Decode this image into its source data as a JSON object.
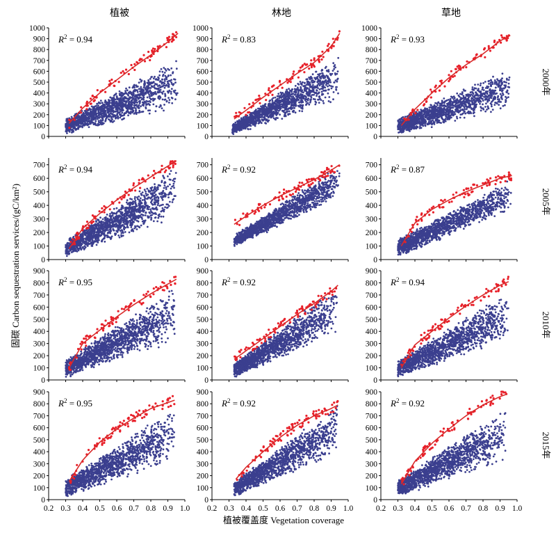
{
  "figure": {
    "column_titles": [
      "植被",
      "林地",
      "草地"
    ],
    "row_labels": [
      "2000年",
      "2005年",
      "2010年",
      "2015年"
    ],
    "xlabel": "植被覆盖度 Vegetation coverage",
    "ylabel": "固碳 Carbon sequestration services/(gC/km²)",
    "colors": {
      "points": "#3b3f8f",
      "boundary_points": "#e8202a",
      "fit_line": "#d92a2a"
    }
  },
  "chart_data": [
    {
      "type": "scatter",
      "row": "2000年",
      "column": "植被",
      "r2_label": "R",
      "r2_value": "= 0.94",
      "xlim": [
        0.2,
        1.0
      ],
      "ylim": [
        0,
        1000
      ],
      "x_ticks": [
        "0.2",
        "0.3",
        "0.4",
        "0.5",
        "0.6",
        "0.7",
        "0.8",
        "0.9",
        "1.0"
      ],
      "y_ticks": [
        "0",
        "100",
        "200",
        "300",
        "400",
        "500",
        "600",
        "700",
        "800",
        "900",
        "1000"
      ],
      "fit_curve": {
        "x": [
          0.32,
          0.4,
          0.5,
          0.6,
          0.7,
          0.8,
          0.9,
          0.96
        ],
        "y": [
          120,
          260,
          400,
          520,
          640,
          750,
          870,
          950
        ]
      },
      "cloud": {
        "x_min": 0.3,
        "x_max": 0.96,
        "low_start": 0,
        "low_end": 200,
        "high_start": 160,
        "high_end": 720
      }
    },
    {
      "type": "scatter",
      "row": "2000年",
      "column": "林地",
      "r2_label": "R",
      "r2_value": "= 0.83",
      "xlim": [
        0.2,
        1.0
      ],
      "ylim": [
        0,
        1000
      ],
      "x_ticks": [
        "0.2",
        "0.3",
        "0.4",
        "0.5",
        "0.6",
        "0.7",
        "0.8",
        "0.9",
        "1.0"
      ],
      "y_ticks": [
        "0",
        "100",
        "200",
        "300",
        "400",
        "500",
        "600",
        "700",
        "800",
        "900",
        "1000"
      ],
      "fit_curve": {
        "x": [
          0.33,
          0.4,
          0.5,
          0.6,
          0.7,
          0.8,
          0.9,
          0.95
        ],
        "y": [
          160,
          240,
          360,
          470,
          580,
          680,
          830,
          950
        ]
      },
      "cloud": {
        "x_min": 0.32,
        "x_max": 0.95,
        "low_start": 0,
        "low_end": 280,
        "high_start": 120,
        "high_end": 760
      }
    },
    {
      "type": "scatter",
      "row": "2000年",
      "column": "草地",
      "r2_label": "R",
      "r2_value": "= 0.93",
      "xlim": [
        0.2,
        1.0
      ],
      "ylim": [
        0,
        1000
      ],
      "x_ticks": [
        "0.2",
        "0.3",
        "0.4",
        "0.5",
        "0.6",
        "0.7",
        "0.8",
        "0.9",
        "1.0"
      ],
      "y_ticks": [
        "0",
        "100",
        "200",
        "300",
        "400",
        "500",
        "600",
        "700",
        "800",
        "900",
        "1000"
      ],
      "fit_curve": {
        "x": [
          0.32,
          0.4,
          0.5,
          0.6,
          0.7,
          0.8,
          0.9,
          0.96
        ],
        "y": [
          100,
          250,
          400,
          540,
          660,
          760,
          880,
          930
        ]
      },
      "cloud": {
        "x_min": 0.3,
        "x_max": 0.96,
        "low_start": 0,
        "low_end": 200,
        "high_start": 160,
        "high_end": 640
      }
    },
    {
      "type": "scatter",
      "row": "2005年",
      "column": "植被",
      "r2_label": "R",
      "r2_value": "= 0.94",
      "xlim": [
        0.2,
        1.0
      ],
      "ylim": [
        0,
        750
      ],
      "x_ticks": [
        "0.2",
        "0.3",
        "0.4",
        "0.5",
        "0.6",
        "0.7",
        "0.8",
        "0.9",
        "1.0"
      ],
      "y_ticks": [
        "0",
        "100",
        "200",
        "300",
        "400",
        "500",
        "600",
        "700"
      ],
      "fit_curve": {
        "x": [
          0.32,
          0.4,
          0.5,
          0.6,
          0.7,
          0.8,
          0.9,
          0.95
        ],
        "y": [
          80,
          230,
          340,
          440,
          530,
          610,
          690,
          730
        ]
      },
      "cloud": {
        "x_min": 0.3,
        "x_max": 0.95,
        "low_start": 0,
        "low_end": 260,
        "high_start": 140,
        "high_end": 700
      }
    },
    {
      "type": "scatter",
      "row": "2005年",
      "column": "林地",
      "r2_label": "R",
      "r2_value": "= 0.92",
      "xlim": [
        0.2,
        1.0
      ],
      "ylim": [
        0,
        750
      ],
      "x_ticks": [
        "0.2",
        "0.3",
        "0.4",
        "0.5",
        "0.6",
        "0.7",
        "0.8",
        "0.9",
        "1.0"
      ],
      "y_ticks": [
        "0",
        "100",
        "200",
        "300",
        "400",
        "500",
        "600",
        "700"
      ],
      "fit_curve": {
        "x": [
          0.33,
          0.4,
          0.5,
          0.6,
          0.7,
          0.8,
          0.9,
          0.95
        ],
        "y": [
          260,
          320,
          400,
          470,
          530,
          590,
          660,
          700
        ]
      },
      "cloud": {
        "x_min": 0.33,
        "x_max": 0.95,
        "low_start": 80,
        "low_end": 420,
        "high_start": 180,
        "high_end": 700
      }
    },
    {
      "type": "scatter",
      "row": "2005年",
      "column": "草地",
      "r2_label": "R",
      "r2_value": "= 0.87",
      "xlim": [
        0.2,
        1.0
      ],
      "ylim": [
        0,
        750
      ],
      "x_ticks": [
        "0.2",
        "0.3",
        "0.4",
        "0.5",
        "0.6",
        "0.7",
        "0.8",
        "0.9",
        "1.0"
      ],
      "y_ticks": [
        "0",
        "100",
        "200",
        "300",
        "400",
        "500",
        "600",
        "700"
      ],
      "fit_curve": {
        "x": [
          0.32,
          0.4,
          0.5,
          0.6,
          0.7,
          0.8,
          0.9,
          0.97
        ],
        "y": [
          100,
          270,
          370,
          440,
          500,
          550,
          600,
          620
        ]
      },
      "cloud": {
        "x_min": 0.3,
        "x_max": 0.97,
        "low_start": 0,
        "low_end": 330,
        "high_start": 150,
        "high_end": 600
      }
    },
    {
      "type": "scatter",
      "row": "2010年",
      "column": "植被",
      "r2_label": "R",
      "r2_value": "= 0.95",
      "xlim": [
        0.2,
        1.0
      ],
      "ylim": [
        0,
        900
      ],
      "x_ticks": [
        "0.2",
        "0.3",
        "0.4",
        "0.5",
        "0.6",
        "0.7",
        "0.8",
        "0.9",
        "1.0"
      ],
      "y_ticks": [
        "0",
        "100",
        "200",
        "300",
        "400",
        "500",
        "600",
        "700",
        "800",
        "900"
      ],
      "fit_curve": {
        "x": [
          0.32,
          0.4,
          0.5,
          0.6,
          0.7,
          0.8,
          0.9,
          0.95
        ],
        "y": [
          100,
          300,
          410,
          520,
          620,
          710,
          790,
          830
        ]
      },
      "cloud": {
        "x_min": 0.3,
        "x_max": 0.95,
        "low_start": 0,
        "low_end": 260,
        "high_start": 160,
        "high_end": 780
      }
    },
    {
      "type": "scatter",
      "row": "2010年",
      "column": "林地",
      "r2_label": "R",
      "r2_value": "= 0.92",
      "xlim": [
        0.2,
        1.0
      ],
      "ylim": [
        0,
        900
      ],
      "x_ticks": [
        "0.2",
        "0.3",
        "0.4",
        "0.5",
        "0.6",
        "0.7",
        "0.8",
        "0.9",
        "1.0"
      ],
      "y_ticks": [
        "0",
        "100",
        "200",
        "300",
        "400",
        "500",
        "600",
        "700",
        "800",
        "900"
      ],
      "fit_curve": {
        "x": [
          0.33,
          0.4,
          0.5,
          0.6,
          0.7,
          0.8,
          0.9,
          0.94
        ],
        "y": [
          170,
          240,
          340,
          440,
          540,
          630,
          730,
          780
        ]
      },
      "cloud": {
        "x_min": 0.33,
        "x_max": 0.94,
        "low_start": 0,
        "low_end": 320,
        "high_start": 140,
        "high_end": 780
      }
    },
    {
      "type": "scatter",
      "row": "2010年",
      "column": "草地",
      "r2_label": "R",
      "r2_value": "= 0.94",
      "xlim": [
        0.2,
        1.0
      ],
      "ylim": [
        0,
        900
      ],
      "x_ticks": [
        "0.2",
        "0.3",
        "0.4",
        "0.5",
        "0.6",
        "0.7",
        "0.8",
        "0.9",
        "1.0"
      ],
      "y_ticks": [
        "0",
        "100",
        "200",
        "300",
        "400",
        "500",
        "600",
        "700",
        "800",
        "900"
      ],
      "fit_curve": {
        "x": [
          0.32,
          0.4,
          0.5,
          0.6,
          0.7,
          0.8,
          0.9,
          0.95
        ],
        "y": [
          100,
          290,
          400,
          510,
          610,
          700,
          780,
          810
        ]
      },
      "cloud": {
        "x_min": 0.3,
        "x_max": 0.95,
        "low_start": 0,
        "low_end": 260,
        "high_start": 160,
        "high_end": 740
      }
    },
    {
      "type": "scatter",
      "row": "2015年",
      "column": "植被",
      "r2_label": "R",
      "r2_value": "= 0.95",
      "xlim": [
        0.2,
        1.0
      ],
      "ylim": [
        0,
        900
      ],
      "x_ticks": [
        "0.2",
        "0.3",
        "0.4",
        "0.5",
        "0.6",
        "0.7",
        "0.8",
        "0.9",
        "1.0"
      ],
      "y_ticks": [
        "0",
        "100",
        "200",
        "300",
        "400",
        "500",
        "600",
        "700",
        "800",
        "900"
      ],
      "fit_curve": {
        "x": [
          0.32,
          0.4,
          0.5,
          0.6,
          0.7,
          0.8,
          0.9,
          0.94
        ],
        "y": [
          150,
          330,
          480,
          590,
          680,
          760,
          810,
          830
        ]
      },
      "cloud": {
        "x_min": 0.3,
        "x_max": 0.94,
        "low_start": 0,
        "low_end": 260,
        "high_start": 170,
        "high_end": 780
      }
    },
    {
      "type": "scatter",
      "row": "2015年",
      "column": "林地",
      "r2_label": "R",
      "r2_value": "= 0.92",
      "xlim": [
        0.2,
        1.0
      ],
      "ylim": [
        0,
        900
      ],
      "x_ticks": [
        "0.2",
        "0.3",
        "0.4",
        "0.5",
        "0.6",
        "0.7",
        "0.8",
        "0.9",
        "1.0"
      ],
      "y_ticks": [
        "0",
        "100",
        "200",
        "300",
        "400",
        "500",
        "600",
        "700",
        "800",
        "900"
      ],
      "fit_curve": {
        "x": [
          0.34,
          0.4,
          0.5,
          0.6,
          0.7,
          0.8,
          0.9,
          0.94
        ],
        "y": [
          170,
          270,
          400,
          520,
          620,
          700,
          760,
          790
        ]
      },
      "cloud": {
        "x_min": 0.33,
        "x_max": 0.94,
        "low_start": 0,
        "low_end": 340,
        "high_start": 150,
        "high_end": 800
      }
    },
    {
      "type": "scatter",
      "row": "2015年",
      "column": "草地",
      "r2_label": "R",
      "r2_value": "= 0.92",
      "xlim": [
        0.2,
        1.0
      ],
      "ylim": [
        0,
        900
      ],
      "x_ticks": [
        "0.2",
        "0.3",
        "0.4",
        "0.5",
        "0.6",
        "0.7",
        "0.8",
        "0.9",
        "1.0"
      ],
      "y_ticks": [
        "0",
        "100",
        "200",
        "300",
        "400",
        "500",
        "600",
        "700",
        "800",
        "900"
      ],
      "fit_curve": {
        "x": [
          0.32,
          0.4,
          0.5,
          0.6,
          0.7,
          0.8,
          0.9,
          0.94
        ],
        "y": [
          130,
          320,
          470,
          590,
          700,
          790,
          860,
          880
        ]
      },
      "cloud": {
        "x_min": 0.3,
        "x_max": 0.94,
        "low_start": 0,
        "low_end": 260,
        "high_start": 160,
        "high_end": 780
      }
    }
  ]
}
